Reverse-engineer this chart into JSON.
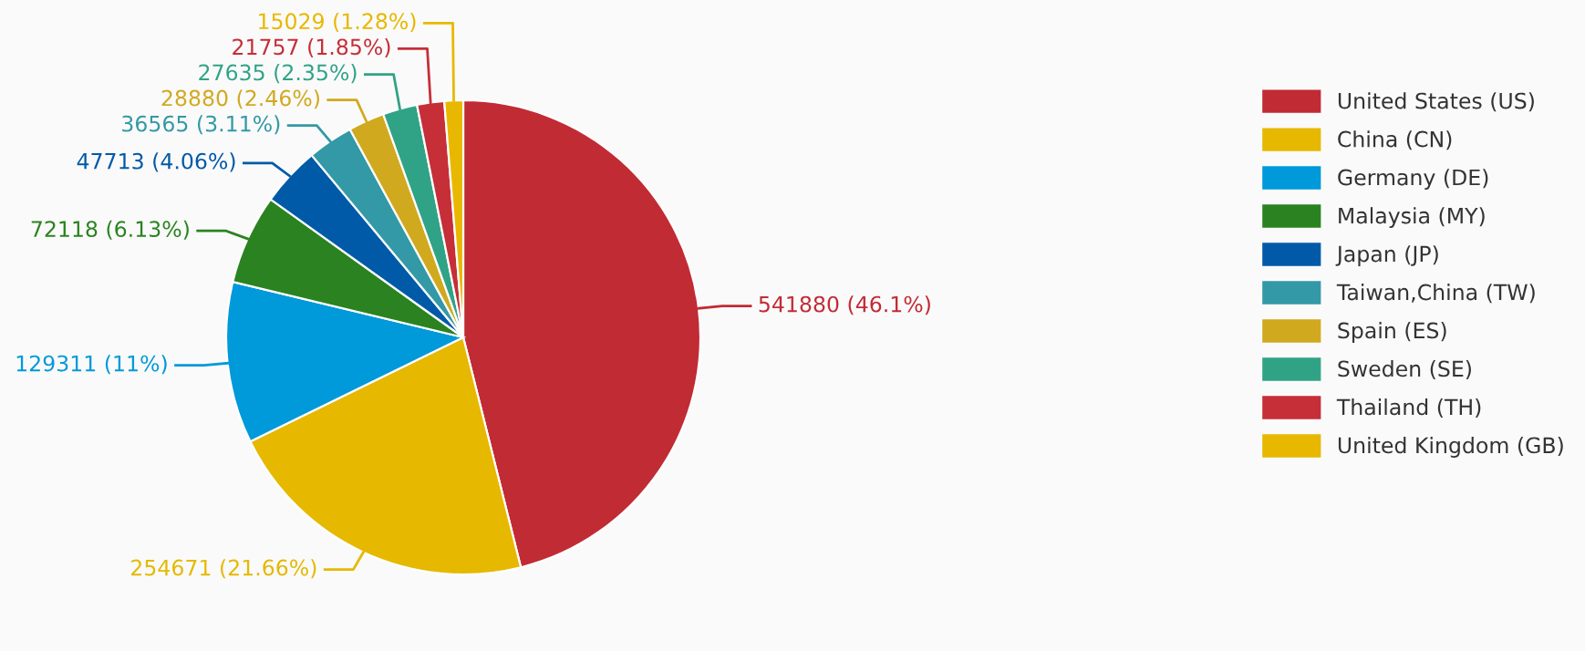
{
  "chart_data": {
    "type": "pie",
    "categories": [
      "United States (US)",
      "China (CN)",
      "Germany (DE)",
      "Malaysia (MY)",
      "Japan (JP)",
      "Taiwan,China (TW)",
      "Spain (ES)",
      "Sweden (SE)",
      "Thailand (TH)",
      "United Kingdom (GB)"
    ],
    "values": [
      541880,
      254671,
      129311,
      72118,
      47713,
      36565,
      28880,
      27635,
      21757,
      15029
    ],
    "value_labels": [
      "541880 (46.1%)",
      "254671 (21.66%)",
      "129311 (11%)",
      "72118 (6.13%)",
      "47713 (4.06%)",
      "36565 (3.11%)",
      "28880 (2.46%)",
      "27635 (2.35%)",
      "21757 (1.85%)",
      "15029 (1.28%)"
    ],
    "colors": [
      "#c12b34",
      "#e6b800",
      "#0099da",
      "#2a8320",
      "#005aa8",
      "#3399a6",
      "#d1a91f",
      "#30a386",
      "#c62e38",
      "#e8b800"
    ],
    "legend": "right"
  }
}
